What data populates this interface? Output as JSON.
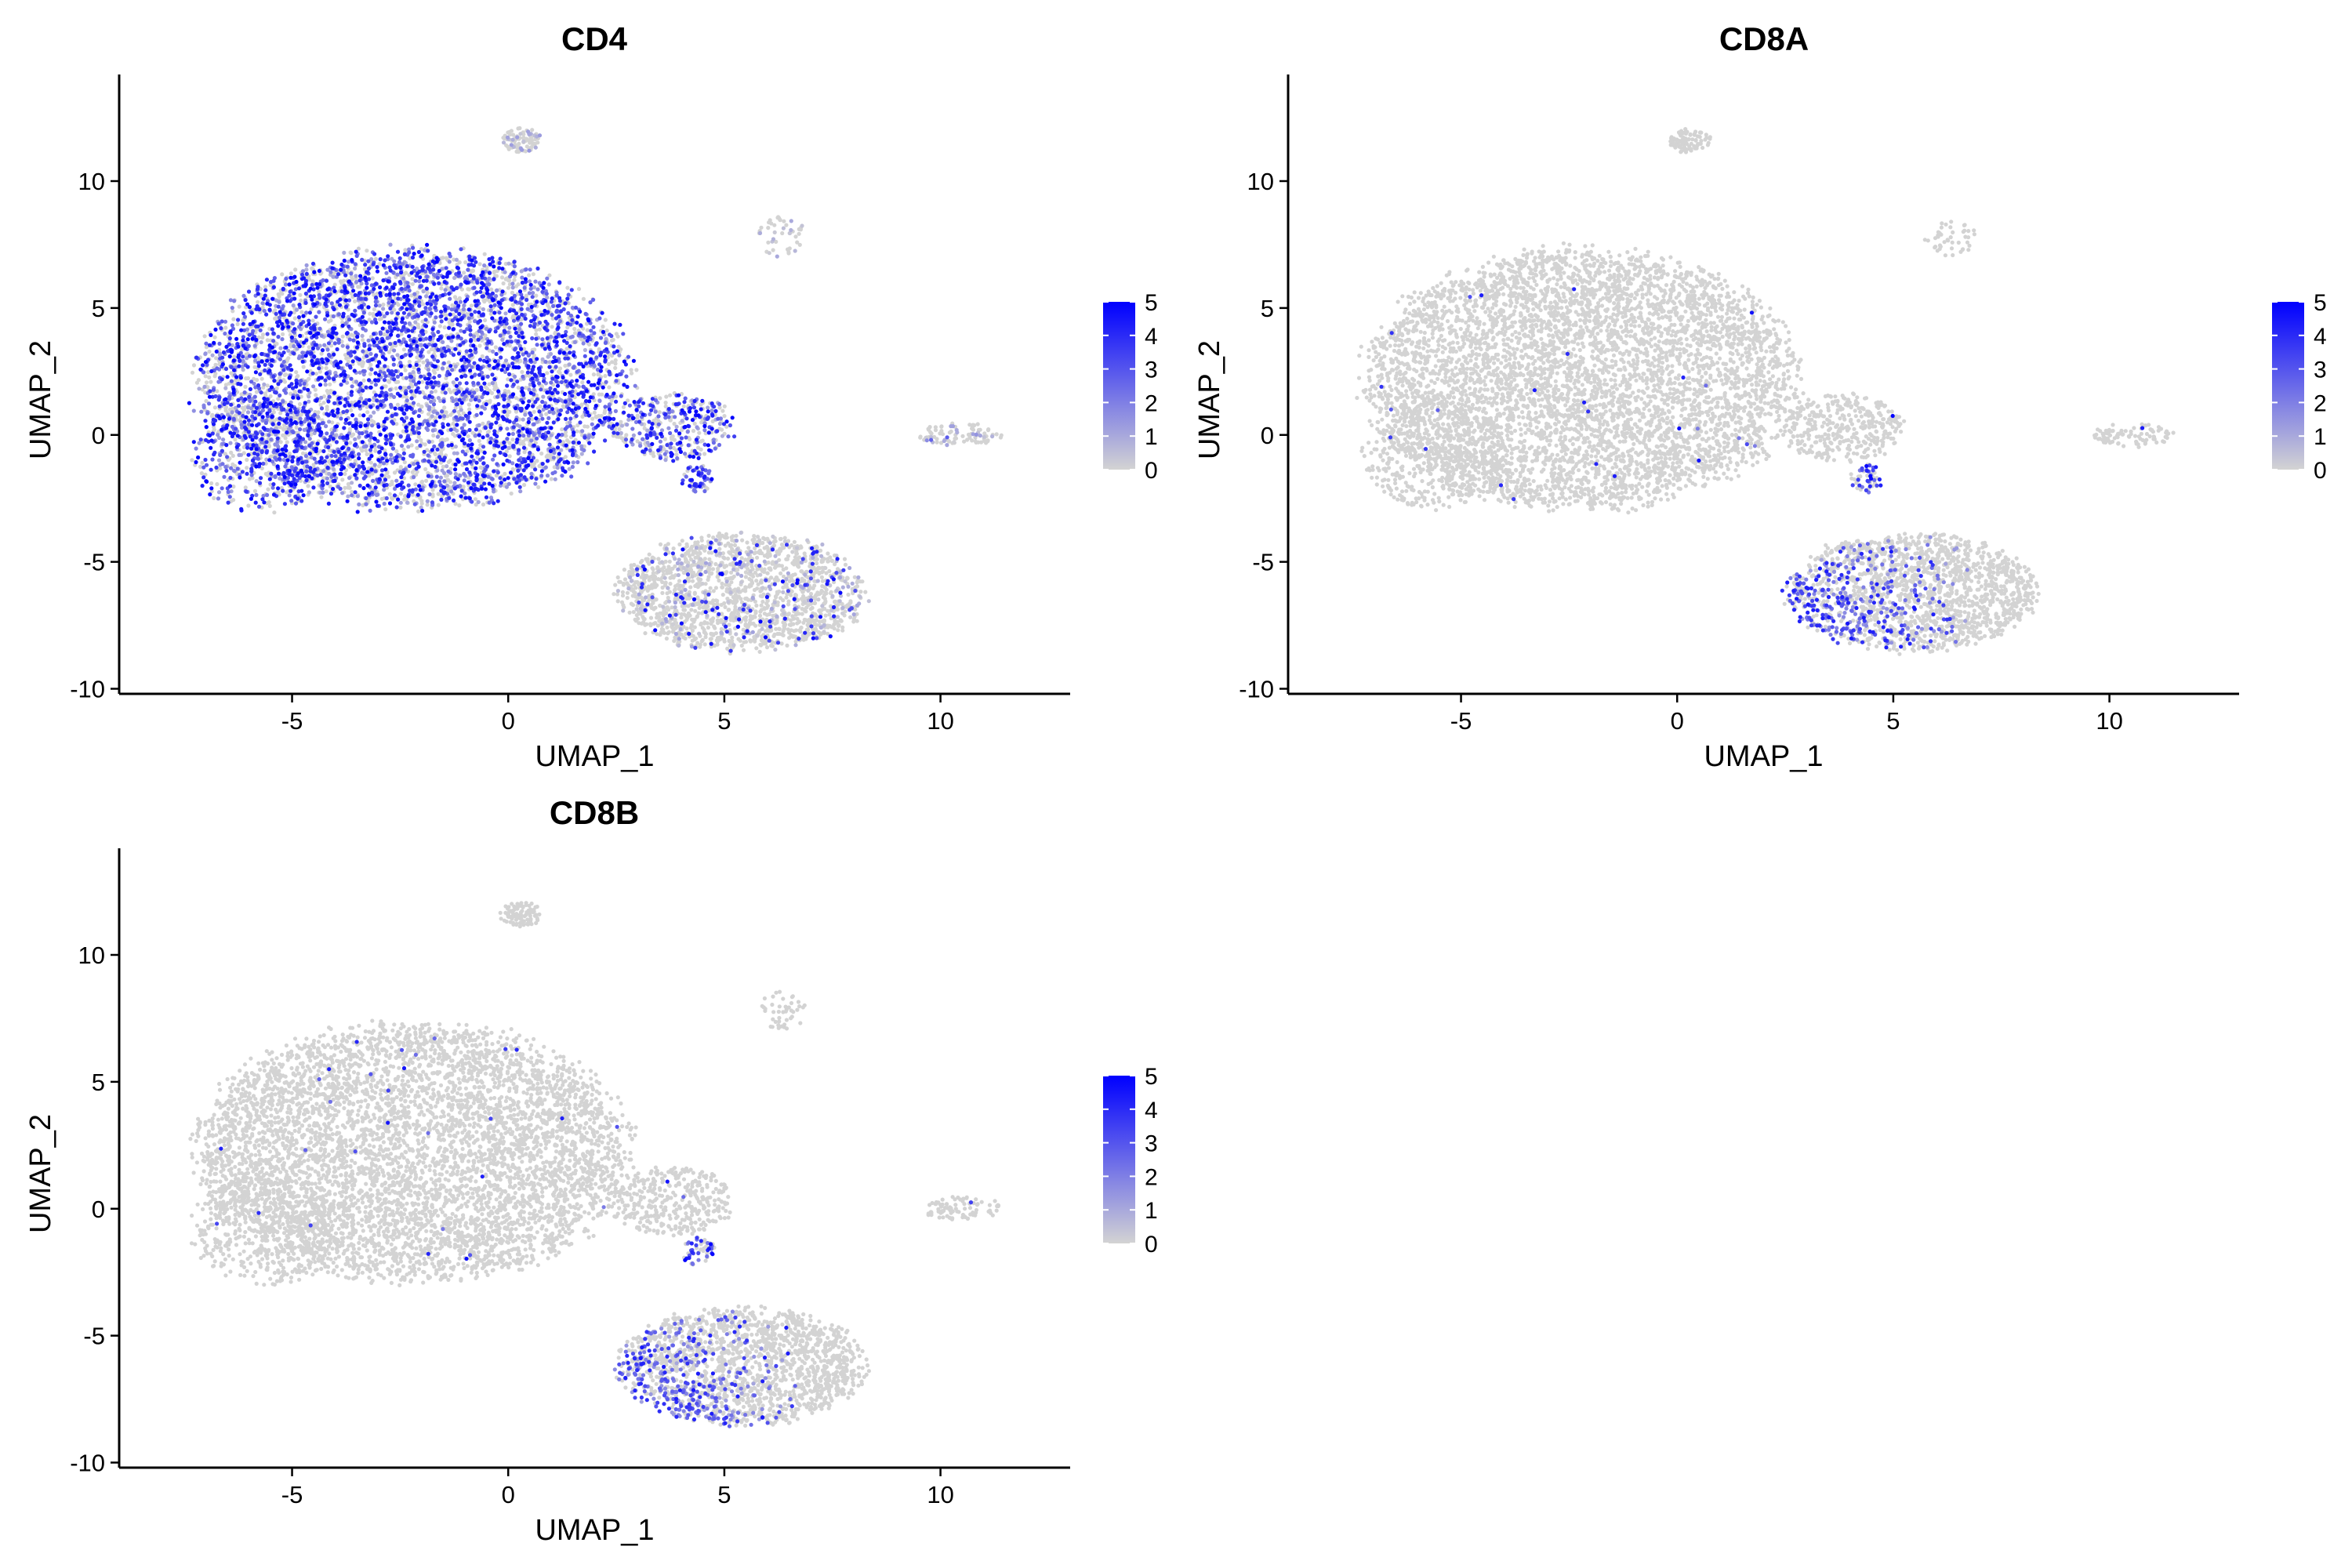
{
  "colors": {
    "low": "#d3d3d3",
    "high": "#0000ff",
    "axis": "#000000"
  },
  "chart_data": [
    {
      "type": "scatter",
      "title": "CD4",
      "xlabel": "UMAP_1",
      "ylabel": "UMAP_2",
      "xlim": [
        -9.0,
        13.0
      ],
      "ylim": [
        -10.2,
        14.2
      ],
      "xticks": [
        -5,
        0,
        5,
        10
      ],
      "yticks": [
        -10,
        -5,
        0,
        5,
        10
      ],
      "grid": false,
      "legend": {
        "placement": "right",
        "min": 0,
        "max": 5,
        "ticks": [
          0,
          1,
          2,
          3,
          4,
          5
        ]
      },
      "expression_pattern": "cd4",
      "clusters": [
        {
          "name": "main",
          "cx": -2.2,
          "cy": 2.2,
          "rx": 5.2,
          "ry": 5.3,
          "share": 0.62
        },
        {
          "name": "main-left",
          "cx": -5.6,
          "cy": -0.8,
          "rx": 1.8,
          "ry": 2.3,
          "share": 0.05
        },
        {
          "name": "right-lobe",
          "cx": 3.8,
          "cy": 0.3,
          "rx": 1.5,
          "ry": 1.4,
          "share": 0.04
        },
        {
          "name": "bottom",
          "cx": 5.4,
          "cy": -6.2,
          "rx": 3.0,
          "ry": 2.4,
          "share": 0.2
        },
        {
          "name": "top-small",
          "cx": 0.3,
          "cy": 11.6,
          "rx": 0.5,
          "ry": 0.5,
          "share": 0.01
        },
        {
          "name": "far-right",
          "cx": 10.5,
          "cy": 0.0,
          "rx": 1.0,
          "ry": 0.5,
          "share": 0.01
        },
        {
          "name": "upper-right",
          "cx": 6.3,
          "cy": 7.8,
          "rx": 0.6,
          "ry": 0.8,
          "share": 0.005
        },
        {
          "name": "small-mid",
          "cx": 4.4,
          "cy": -1.7,
          "rx": 0.4,
          "ry": 0.6,
          "share": 0.006
        }
      ]
    },
    {
      "type": "scatter",
      "title": "CD8A",
      "xlabel": "UMAP_1",
      "ylabel": "UMAP_2",
      "xlim": [
        -9.0,
        13.0
      ],
      "ylim": [
        -10.2,
        14.2
      ],
      "xticks": [
        -5,
        0,
        5,
        10
      ],
      "yticks": [
        -10,
        -5,
        0,
        5,
        10
      ],
      "grid": false,
      "legend": {
        "placement": "right",
        "min": 0,
        "max": 5,
        "ticks": [
          0,
          1,
          2,
          3,
          4,
          5
        ]
      },
      "expression_pattern": "cd8",
      "clusters": [
        {
          "name": "main",
          "cx": -2.2,
          "cy": 2.2,
          "rx": 5.2,
          "ry": 5.3,
          "share": 0.62
        },
        {
          "name": "main-left",
          "cx": -5.6,
          "cy": -0.8,
          "rx": 1.8,
          "ry": 2.3,
          "share": 0.05
        },
        {
          "name": "right-lobe",
          "cx": 3.8,
          "cy": 0.3,
          "rx": 1.5,
          "ry": 1.4,
          "share": 0.04
        },
        {
          "name": "bottom",
          "cx": 5.4,
          "cy": -6.2,
          "rx": 3.0,
          "ry": 2.4,
          "share": 0.2
        },
        {
          "name": "top-small",
          "cx": 0.3,
          "cy": 11.6,
          "rx": 0.5,
          "ry": 0.5,
          "share": 0.01
        },
        {
          "name": "far-right",
          "cx": 10.5,
          "cy": 0.0,
          "rx": 1.0,
          "ry": 0.5,
          "share": 0.01
        },
        {
          "name": "upper-right",
          "cx": 6.3,
          "cy": 7.8,
          "rx": 0.6,
          "ry": 0.8,
          "share": 0.005
        },
        {
          "name": "small-mid",
          "cx": 4.4,
          "cy": -1.7,
          "rx": 0.4,
          "ry": 0.6,
          "share": 0.006
        }
      ]
    },
    {
      "type": "scatter",
      "title": "CD8B",
      "xlabel": "UMAP_1",
      "ylabel": "UMAP_2",
      "xlim": [
        -9.0,
        13.0
      ],
      "ylim": [
        -10.2,
        14.2
      ],
      "xticks": [
        -5,
        0,
        5,
        10
      ],
      "yticks": [
        -10,
        -5,
        0,
        5,
        10
      ],
      "grid": false,
      "legend": {
        "placement": "right",
        "min": 0,
        "max": 5,
        "ticks": [
          0,
          1,
          2,
          3,
          4,
          5
        ]
      },
      "expression_pattern": "cd8",
      "clusters": [
        {
          "name": "main",
          "cx": -2.2,
          "cy": 2.2,
          "rx": 5.2,
          "ry": 5.3,
          "share": 0.62
        },
        {
          "name": "main-left",
          "cx": -5.6,
          "cy": -0.8,
          "rx": 1.8,
          "ry": 2.3,
          "share": 0.05
        },
        {
          "name": "right-lobe",
          "cx": 3.8,
          "cy": 0.3,
          "rx": 1.5,
          "ry": 1.4,
          "share": 0.04
        },
        {
          "name": "bottom",
          "cx": 5.4,
          "cy": -6.2,
          "rx": 3.0,
          "ry": 2.4,
          "share": 0.2
        },
        {
          "name": "top-small",
          "cx": 0.3,
          "cy": 11.6,
          "rx": 0.5,
          "ry": 0.5,
          "share": 0.01
        },
        {
          "name": "far-right",
          "cx": 10.5,
          "cy": 0.0,
          "rx": 1.0,
          "ry": 0.5,
          "share": 0.01
        },
        {
          "name": "upper-right",
          "cx": 6.3,
          "cy": 7.8,
          "rx": 0.6,
          "ry": 0.8,
          "share": 0.005
        },
        {
          "name": "small-mid",
          "cx": 4.4,
          "cy": -1.7,
          "rx": 0.4,
          "ry": 0.6,
          "share": 0.006
        }
      ]
    }
  ]
}
